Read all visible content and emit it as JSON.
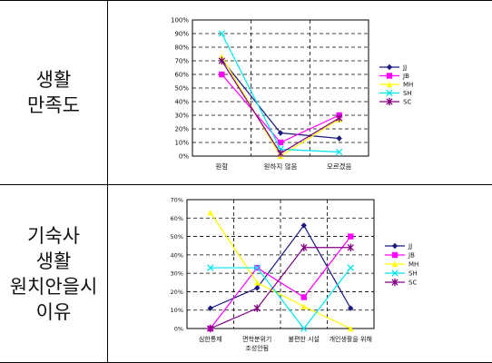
{
  "rows": [
    {
      "label_lines": [
        "생활",
        "만족도"
      ]
    },
    {
      "label_lines": [
        "기숙사",
        "생활",
        "원치안을시",
        "이유"
      ]
    }
  ],
  "chart_data": [
    {
      "type": "line",
      "categories": [
        "원함",
        "원하지 않음",
        "모르겠음"
      ],
      "ylim": [
        0,
        100
      ],
      "yticks": [
        0,
        10,
        20,
        30,
        40,
        50,
        60,
        70,
        80,
        90,
        100
      ],
      "ytick_labels": [
        "0%",
        "10%",
        "20%",
        "30%",
        "40%",
        "50%",
        "60%",
        "70%",
        "80%",
        "90%",
        "100%"
      ],
      "grid": "dashed horizontal, dashed vertical between categories",
      "legend_position": "right",
      "series": [
        {
          "name": "JJ",
          "color": "#1a1a80",
          "marker": "diamond",
          "values": [
            71,
            17,
            13
          ]
        },
        {
          "name": "JB",
          "color": "#ff00ff",
          "marker": "square",
          "values": [
            60,
            10,
            30
          ]
        },
        {
          "name": "MH",
          "color": "#ffff00",
          "marker": "triangle",
          "values": [
            73,
            0,
            27
          ]
        },
        {
          "name": "SH",
          "color": "#00e5ee",
          "marker": "x",
          "values": [
            90,
            5,
            3
          ]
        },
        {
          "name": "SC",
          "color": "#800080",
          "marker": "star",
          "values": [
            70,
            2,
            28
          ]
        }
      ]
    },
    {
      "type": "line",
      "categories": [
        "심한통제",
        "면학분위기 조성안됨",
        "불편한 시설",
        "개인생활을 위해"
      ],
      "ylim": [
        0,
        70
      ],
      "yticks": [
        0,
        10,
        20,
        30,
        40,
        50,
        60,
        70
      ],
      "ytick_labels": [
        "0%",
        "10%",
        "20%",
        "30%",
        "40%",
        "50%",
        "60%",
        "70%"
      ],
      "grid": "dashed horizontal, dashed vertical between categories",
      "legend_position": "right",
      "series": [
        {
          "name": "JJ",
          "color": "#1a1a80",
          "marker": "diamond",
          "values": [
            11,
            22,
            56,
            11
          ]
        },
        {
          "name": "JB",
          "color": "#ff00ff",
          "marker": "square",
          "values": [
            0,
            33,
            17,
            50
          ]
        },
        {
          "name": "MH",
          "color": "#ffff00",
          "marker": "triangle",
          "values": [
            63,
            25,
            12,
            0
          ]
        },
        {
          "name": "SH",
          "color": "#00e5ee",
          "marker": "x",
          "values": [
            33,
            33,
            0,
            33
          ]
        },
        {
          "name": "SC",
          "color": "#800080",
          "marker": "star",
          "values": [
            0,
            11,
            44,
            44
          ]
        }
      ]
    }
  ]
}
